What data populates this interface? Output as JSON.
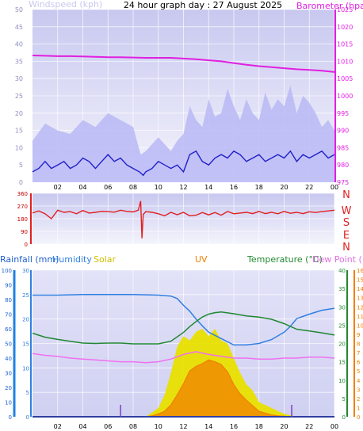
{
  "title": "24 hour graph day : 27 August 2025",
  "colors": {
    "wind_gust": "#b8b8f6",
    "wind_avg": "#2020c8",
    "barometer": "#e020e0",
    "direction": "#e02020",
    "rain": "#2080e0",
    "humidity": "#3080e0",
    "solar": "#e8e000",
    "uv": "#f08000",
    "temperature": "#208830",
    "dew_point": "#f070f0",
    "plot_top": "#c8c8f0",
    "plot_bottom": "#f4f4fc"
  },
  "chart_data": [
    {
      "type": "line",
      "panel": "wind-barometer",
      "title": "",
      "xlabel": "",
      "x_ticks": [
        "02",
        "04",
        "06",
        "08",
        "10",
        "12",
        "14",
        "16",
        "18",
        "20",
        "22",
        "00"
      ],
      "left_axis": {
        "label": "Windspeed (kph)",
        "ticks": [
          0,
          5,
          10,
          15,
          20,
          25,
          30,
          35,
          40,
          45,
          50
        ],
        "range": [
          0,
          50
        ]
      },
      "right_axis": {
        "label": "Barometer (hpa)",
        "ticks": [
          975,
          980,
          985,
          990,
          995,
          1000,
          1005,
          1010,
          1015,
          1020,
          1025
        ],
        "range": [
          975,
          1025
        ]
      },
      "series": [
        {
          "name": "Wind gust",
          "axis": "left",
          "x": [
            0,
            1,
            2,
            3,
            4,
            5,
            6,
            7,
            8,
            8.6,
            9,
            9.5,
            10,
            10.5,
            11,
            11.5,
            12,
            12.5,
            13,
            13.5,
            14,
            14.5,
            15,
            15.5,
            16,
            16.5,
            17,
            17.5,
            18,
            18.5,
            19,
            19.5,
            20,
            20.5,
            21,
            21.5,
            22,
            22.5,
            23,
            23.5,
            24
          ],
          "values": [
            12,
            17,
            15,
            14,
            18,
            16,
            20,
            18,
            16,
            8,
            9,
            11,
            13,
            11,
            9,
            12,
            14,
            22,
            18,
            16,
            24,
            19,
            20,
            27,
            22,
            18,
            24,
            20,
            18,
            26,
            21,
            24,
            22,
            28,
            20,
            25,
            23,
            20,
            16,
            18,
            15
          ]
        },
        {
          "name": "Wind average",
          "axis": "left",
          "x": [
            0,
            0.5,
            1,
            1.5,
            2,
            2.5,
            3,
            3.5,
            4,
            4.5,
            5,
            5.5,
            6,
            6.5,
            7,
            7.5,
            8,
            8.5,
            8.8,
            9,
            9.5,
            10,
            10.5,
            11,
            11.5,
            12,
            12.5,
            13,
            13.5,
            14,
            14.5,
            15,
            15.5,
            16,
            16.5,
            17,
            17.5,
            18,
            18.5,
            19,
            19.5,
            20,
            20.5,
            21,
            21.5,
            22,
            22.5,
            23,
            23.5,
            24
          ],
          "values": [
            3,
            4,
            6,
            4,
            5,
            6,
            4,
            5,
            7,
            6,
            4,
            6,
            8,
            6,
            7,
            5,
            4,
            3,
            2,
            3,
            4,
            6,
            5,
            4,
            5,
            3,
            8,
            9,
            6,
            5,
            7,
            8,
            7,
            9,
            8,
            6,
            7,
            8,
            6,
            7,
            8,
            7,
            9,
            6,
            8,
            7,
            8,
            9,
            7,
            8
          ]
        },
        {
          "name": "Barometer",
          "axis": "right",
          "x": [
            0,
            1,
            2,
            3,
            4,
            5,
            6,
            7,
            8,
            9,
            10,
            11,
            12,
            13,
            14,
            15,
            16,
            17,
            18,
            19,
            20,
            21,
            22,
            23,
            24
          ],
          "values": [
            1011.7,
            1011.6,
            1011.5,
            1011.5,
            1011.4,
            1011.3,
            1011.2,
            1011.2,
            1011.1,
            1011.0,
            1011.0,
            1011.0,
            1010.8,
            1010.6,
            1010.3,
            1010.0,
            1009.5,
            1009.0,
            1008.6,
            1008.3,
            1008.0,
            1007.7,
            1007.5,
            1007.3,
            1006.9
          ]
        }
      ]
    },
    {
      "type": "line",
      "panel": "wind-direction",
      "title": "",
      "xlabel": "",
      "left_axis": {
        "label": "",
        "ticks": [
          0,
          90,
          180,
          270,
          360
        ],
        "range": [
          0,
          360
        ]
      },
      "compass_labels": [
        "N",
        "W",
        "S",
        "E",
        "N"
      ],
      "series": [
        {
          "name": "Wind direction",
          "x": [
            0,
            0.5,
            1,
            1.5,
            2,
            2.5,
            3,
            3.5,
            4,
            4.5,
            5,
            5.5,
            6,
            6.5,
            7,
            7.5,
            8,
            8.4,
            8.6,
            8.7,
            8.8,
            9,
            9.5,
            10,
            10.5,
            11,
            11.5,
            12,
            12.5,
            13,
            13.5,
            14,
            14.5,
            15,
            15.5,
            16,
            16.5,
            17,
            17.5,
            18,
            18.5,
            19,
            19.5,
            20,
            20.5,
            21,
            21.5,
            22,
            22.5,
            23,
            23.5,
            24
          ],
          "values": [
            220,
            235,
            215,
            180,
            240,
            225,
            230,
            215,
            238,
            220,
            225,
            232,
            230,
            226,
            240,
            232,
            228,
            240,
            305,
            40,
            210,
            230,
            225,
            215,
            200,
            225,
            208,
            225,
            200,
            205,
            224,
            207,
            224,
            205,
            231,
            215,
            220,
            225,
            216,
            231,
            216,
            225,
            215,
            231,
            218,
            225,
            216,
            229,
            224,
            230,
            235,
            240
          ]
        }
      ]
    },
    {
      "type": "line",
      "panel": "rain-humidity-temperature",
      "title": "",
      "xlabel": "",
      "legend": [
        "Rainfall (mm)",
        "Humidity",
        "Solar",
        "UV",
        "Temperature (°C)",
        "Dew Point (°C)"
      ],
      "axes": {
        "rain": {
          "ticks": [
            0,
            10,
            20,
            30,
            40,
            50,
            60,
            70,
            80,
            90,
            100
          ],
          "range": [
            0,
            100
          ]
        },
        "humidity": {
          "ticks": [
            0,
            5,
            10,
            15,
            20,
            25,
            30
          ],
          "range": [
            0,
            30
          ]
        },
        "temperature": {
          "ticks": [
            0,
            5,
            10,
            15,
            20,
            25,
            30,
            35,
            40
          ],
          "range": [
            0,
            40
          ]
        },
        "dew_point": {
          "ticks": [
            0,
            1,
            2,
            3,
            4,
            5,
            6,
            7,
            8,
            9,
            10,
            11,
            12,
            13,
            14,
            15,
            16
          ],
          "range": [
            0,
            16
          ]
        }
      },
      "series": [
        {
          "name": "Humidity",
          "axis": "humidity",
          "x": [
            0,
            2,
            4,
            6,
            8,
            10,
            11,
            11.5,
            12,
            12.5,
            13,
            13.5,
            14,
            15,
            16,
            17,
            18,
            19,
            20,
            20.5,
            21,
            22,
            23,
            24
          ],
          "values": [
            24.9,
            24.9,
            25.0,
            25.0,
            25.0,
            24.9,
            24.7,
            24.2,
            22.8,
            21.6,
            20.0,
            18.6,
            17.3,
            16.0,
            14.7,
            14.7,
            15.0,
            15.8,
            17.3,
            18.5,
            20.1,
            21.0,
            21.8,
            22.2
          ]
        },
        {
          "name": "Temperature",
          "axis": "temperature",
          "x": [
            0,
            1,
            2,
            3,
            4,
            5,
            6,
            7,
            8,
            9,
            10,
            11,
            12,
            12.5,
            13,
            13.5,
            14,
            14.5,
            15,
            16,
            17,
            18,
            19,
            20,
            21,
            22,
            23,
            24
          ],
          "values": [
            22.8,
            21.7,
            21.1,
            20.6,
            20.1,
            20.0,
            20.1,
            20.1,
            19.9,
            19.9,
            19.9,
            20.6,
            23.0,
            24.6,
            26.0,
            27.2,
            28.0,
            28.4,
            28.6,
            28.1,
            27.5,
            27.2,
            26.6,
            25.4,
            23.9,
            23.4,
            22.9,
            22.3
          ]
        },
        {
          "name": "Dew Point",
          "axis": "dew_point",
          "x": [
            0,
            1,
            2,
            3,
            4,
            5,
            6,
            7,
            8,
            9,
            10,
            11,
            12,
            13,
            14,
            15,
            16,
            17,
            18,
            19,
            20,
            21,
            22,
            23,
            24
          ],
          "values": [
            6.9,
            6.7,
            6.6,
            6.4,
            6.3,
            6.2,
            6.1,
            6.0,
            6.0,
            5.9,
            6.0,
            6.3,
            6.8,
            7.1,
            6.8,
            6.6,
            6.4,
            6.4,
            6.3,
            6.3,
            6.4,
            6.4,
            6.5,
            6.5,
            6.4
          ]
        },
        {
          "name": "Solar",
          "axis": "rain",
          "x": [
            9,
            9.5,
            10,
            10.5,
            11,
            11.5,
            12,
            12.5,
            13,
            13.5,
            14,
            14.5,
            15,
            15.5,
            16,
            16.5,
            17,
            17.5,
            18,
            18.5,
            19,
            19.5,
            20,
            20.5,
            21
          ],
          "values": [
            0,
            3,
            6,
            15,
            30,
            48,
            55,
            52,
            58,
            60,
            55,
            60,
            52,
            50,
            40,
            30,
            22,
            18,
            10,
            8,
            6,
            4,
            2,
            1,
            0
          ]
        },
        {
          "name": "UV",
          "axis": "dew_point",
          "x": [
            9,
            9.5,
            10,
            10.5,
            11,
            11.5,
            12,
            12.5,
            13,
            13.5,
            14,
            14.5,
            15,
            15.5,
            16,
            16.5,
            17,
            17.5,
            18,
            18.5,
            19,
            19.5,
            20,
            20.5
          ],
          "values": [
            0,
            0.1,
            0.3,
            0.6,
            1.3,
            2.4,
            3.6,
            5.0,
            5.5,
            5.8,
            6.2,
            6.0,
            5.7,
            4.9,
            3.5,
            2.5,
            1.8,
            1.2,
            0.6,
            0.4,
            0.2,
            0.1,
            0.05,
            0
          ]
        },
        {
          "name": "Rainfall",
          "axis": "rain",
          "x": [
            0,
            24
          ],
          "values": [
            0,
            0
          ]
        }
      ],
      "markers_hours": [
        7,
        20.6
      ]
    }
  ]
}
